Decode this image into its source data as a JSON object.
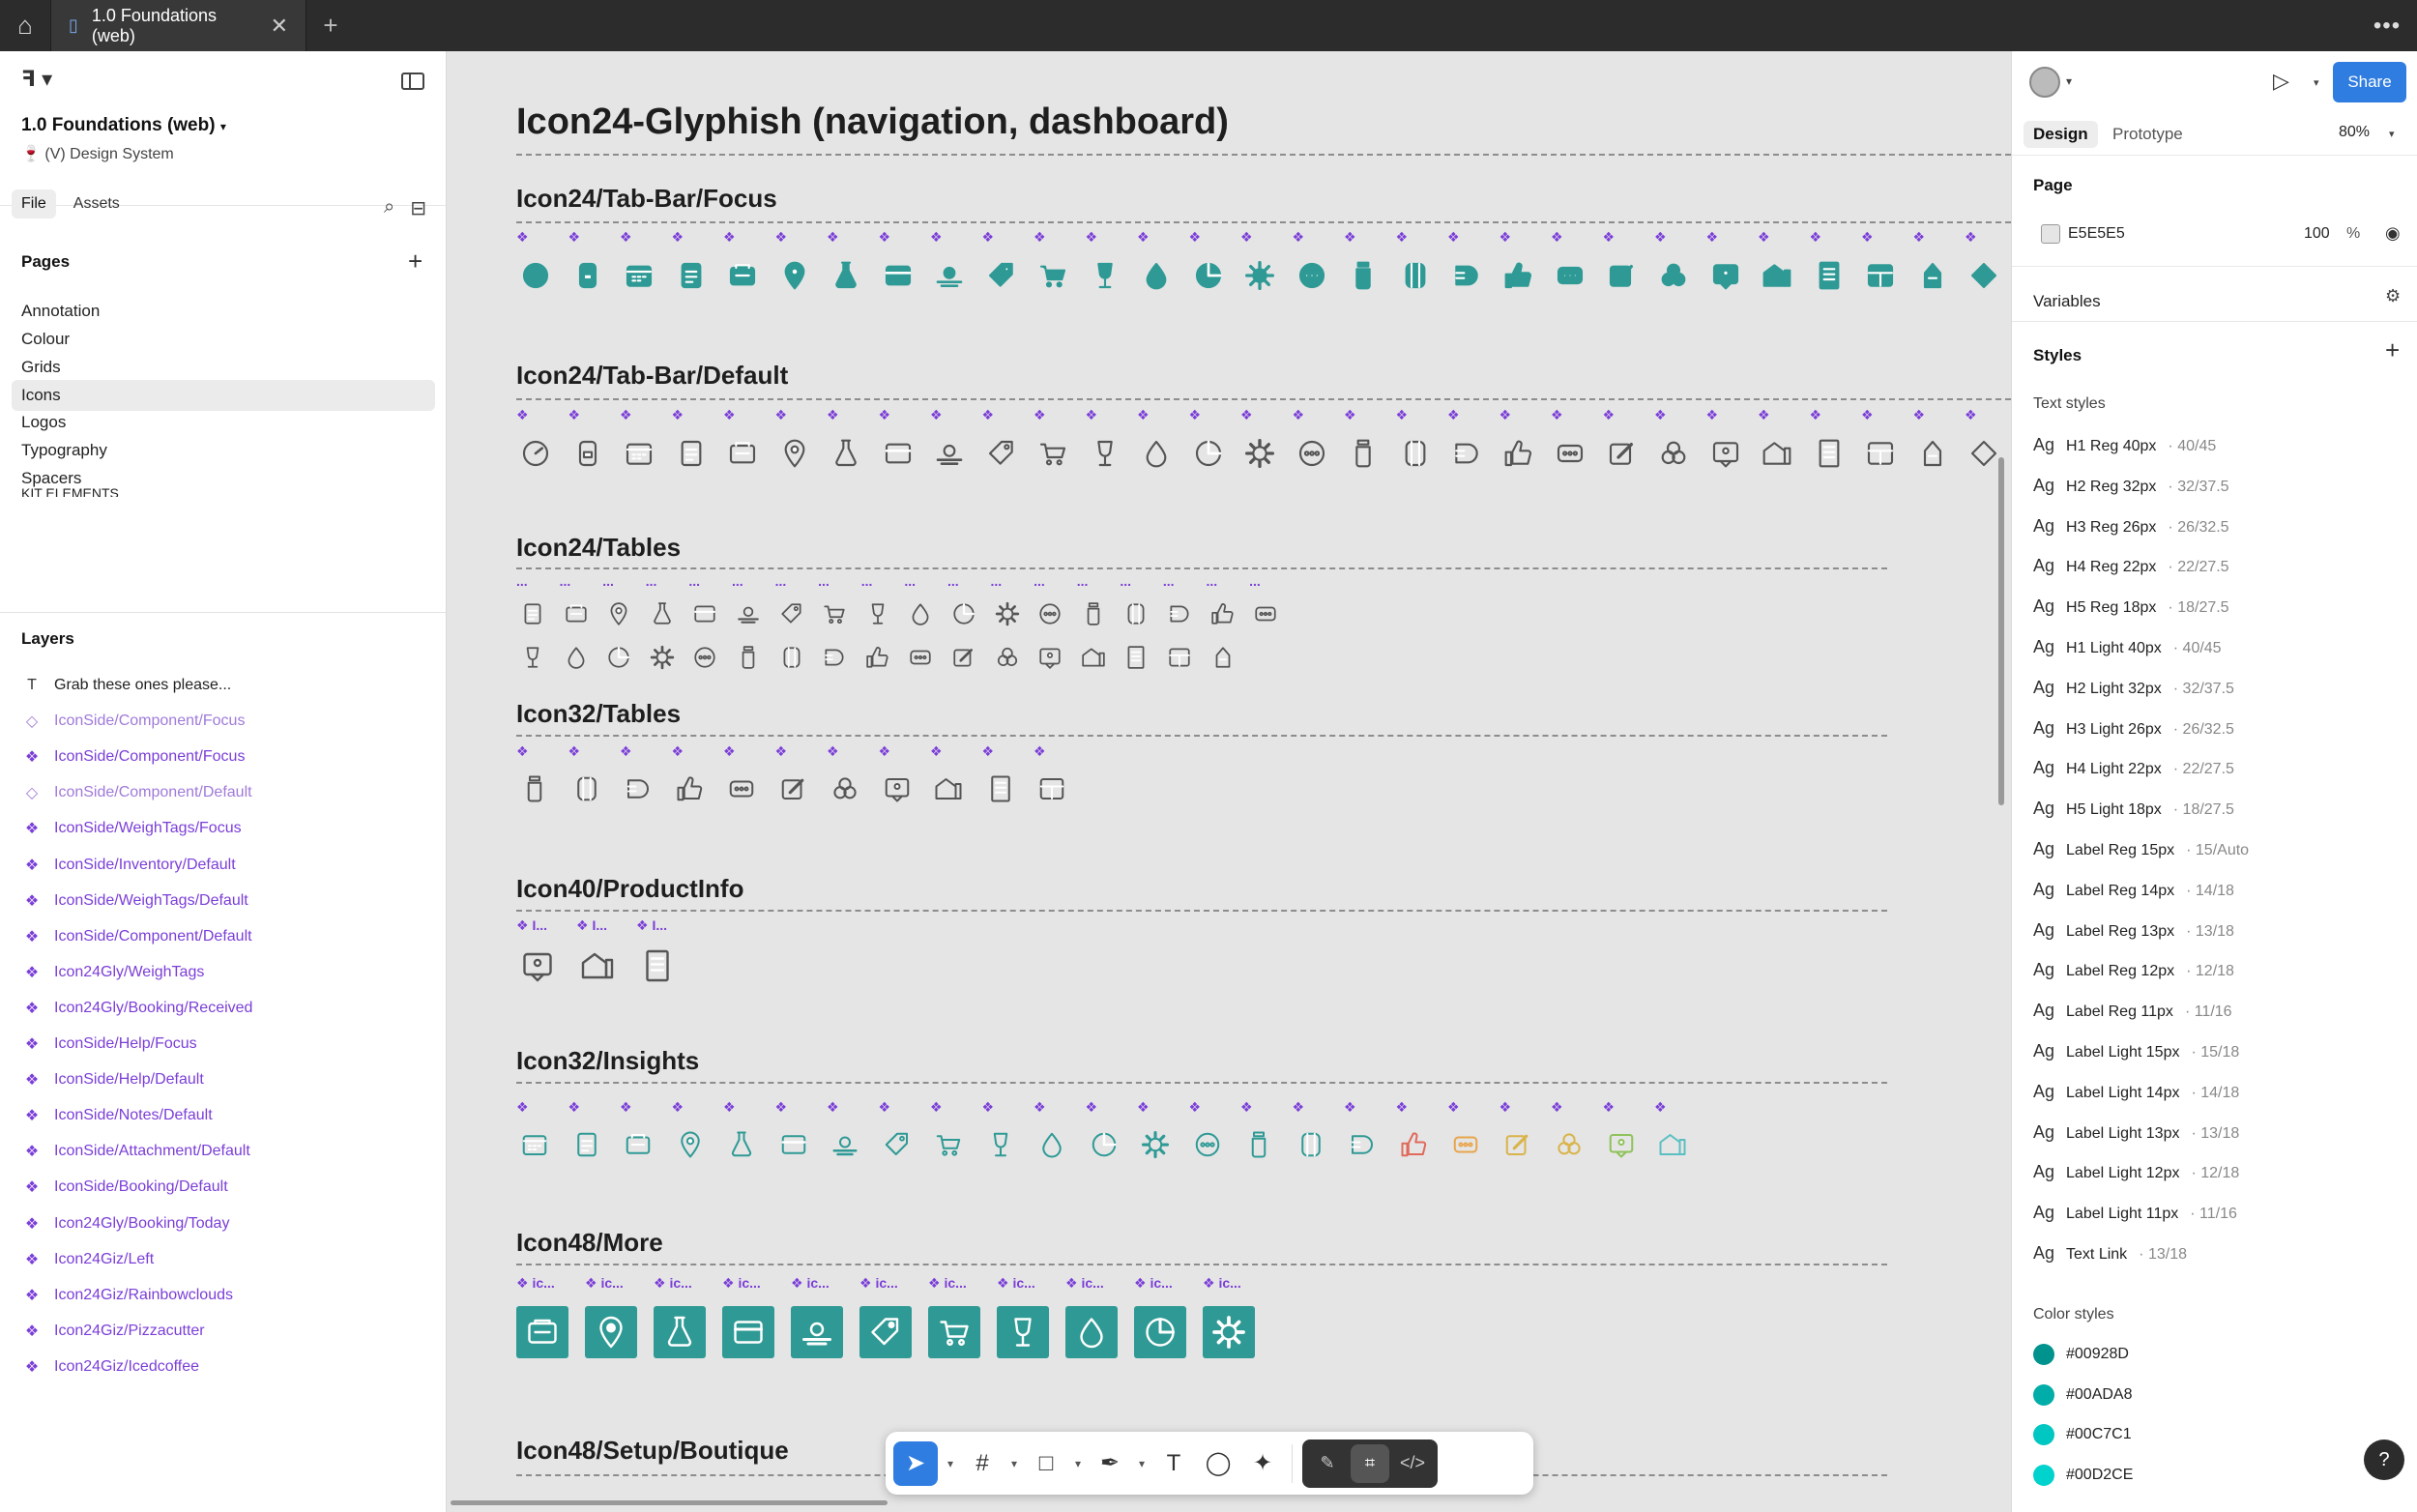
{
  "topbar": {
    "tab_label": "1.0 Foundations (web)"
  },
  "left": {
    "file_title": "1.0 Foundations (web)",
    "file_subtitle": "🍷 (V) Design System",
    "tab_file": "File",
    "tab_assets": "Assets",
    "pages_header": "Pages",
    "pages": [
      "Annotation",
      "Colour",
      "Grids",
      "Icons",
      "Logos",
      "Typography",
      "Spacers",
      "KIT ELEMENTS"
    ],
    "active_page": "Icons",
    "layers_header": "Layers",
    "layers": [
      {
        "label": "Grab these ones please...",
        "kind": "text"
      },
      {
        "label": "IconSide/Component/Focus",
        "kind": "dim"
      },
      {
        "label": "IconSide/Component/Focus",
        "kind": "purple"
      },
      {
        "label": "IconSide/Component/Default",
        "kind": "dim"
      },
      {
        "label": "IconSide/WeighTags/Focus",
        "kind": "purple"
      },
      {
        "label": "IconSide/Inventory/Default",
        "kind": "purple"
      },
      {
        "label": "IconSide/WeighTags/Default",
        "kind": "purple"
      },
      {
        "label": "IconSide/Component/Default",
        "kind": "purple"
      },
      {
        "label": "Icon24Gly/WeighTags",
        "kind": "purple"
      },
      {
        "label": "Icon24Gly/Booking/Received",
        "kind": "purple"
      },
      {
        "label": "IconSide/Help/Focus",
        "kind": "purple"
      },
      {
        "label": "IconSide/Help/Default",
        "kind": "purple"
      },
      {
        "label": "IconSide/Notes/Default",
        "kind": "purple"
      },
      {
        "label": "IconSide/Attachment/Default",
        "kind": "purple"
      },
      {
        "label": "IconSide/Booking/Default",
        "kind": "purple"
      },
      {
        "label": "Icon24Gly/Booking/Today",
        "kind": "purple"
      },
      {
        "label": "Icon24Giz/Left",
        "kind": "purple"
      },
      {
        "label": "Icon24Giz/Rainbowclouds",
        "kind": "purple"
      },
      {
        "label": "Icon24Giz/Pizzacutter",
        "kind": "purple"
      },
      {
        "label": "Icon24Giz/Icedcoffee",
        "kind": "purple"
      }
    ]
  },
  "canvas": {
    "page_title": "Icon24-Glyphish (navigation, dashboard)",
    "sections": {
      "tabbar_focus": "Icon24/Tab-Bar/Focus",
      "tabbar_default": "Icon24/Tab-Bar/Default",
      "tables24": "Icon24/Tables",
      "tables32": "Icon32/Tables",
      "productinfo40": "Icon40/ProductInfo",
      "insights32": "Icon32/Insights",
      "more48": "Icon48/More",
      "setup48": "Icon48/Setup/Boutique"
    },
    "label_icon": "❖",
    "label_dots": "...",
    "label_i": "❖ I...",
    "label_ic": "❖ ic...",
    "counts": {
      "tabbar": 29,
      "tables24_row1": 18,
      "tables24_row2": 17,
      "tables32": 11,
      "productinfo": 3,
      "insights": 23,
      "more": 11
    },
    "colors": {
      "teal": "#2f9a95",
      "gray_icon": "#555555",
      "label_purple": "#7b3ed8",
      "insight_red": "#e06a5a",
      "insight_orange": "#e8a54c",
      "insight_yellow": "#d9b44a",
      "insight_green": "#8ec25a",
      "insight_cyan": "#5bbfc2"
    }
  },
  "toolbar": {
    "tools": [
      "move-tool",
      "frame-tool",
      "shape-tool",
      "pen-tool",
      "text-tool",
      "comment-tool",
      "actions-tool"
    ],
    "dev_tools": [
      "draw-mode",
      "design-mode",
      "dev-mode"
    ]
  },
  "right": {
    "tab_design": "Design",
    "tab_prototype": "Prototype",
    "zoom": "80%",
    "share": "Share",
    "page_header": "Page",
    "page_color": "E5E5E5",
    "page_opacity": "100",
    "page_opacity_unit": "%",
    "variables_header": "Variables",
    "styles_header": "Styles",
    "text_styles_header": "Text styles",
    "ag": "Ag",
    "text_styles": [
      {
        "name": "H1 Reg 40px",
        "meta": "· 40/45"
      },
      {
        "name": "H2 Reg 32px",
        "meta": "· 32/37.5"
      },
      {
        "name": "H3 Reg 26px",
        "meta": "· 26/32.5"
      },
      {
        "name": "H4 Reg 22px",
        "meta": "· 22/27.5"
      },
      {
        "name": "H5 Reg 18px",
        "meta": "· 18/27.5"
      },
      {
        "name": "H1 Light 40px",
        "meta": "· 40/45"
      },
      {
        "name": "H2 Light 32px",
        "meta": "· 32/37.5"
      },
      {
        "name": "H3 Light 26px",
        "meta": "· 26/32.5"
      },
      {
        "name": "H4 Light 22px",
        "meta": "· 22/27.5"
      },
      {
        "name": "H5 Light 18px",
        "meta": "· 18/27.5"
      },
      {
        "name": "Label Reg 15px",
        "meta": "· 15/Auto"
      },
      {
        "name": "Label Reg 14px",
        "meta": "· 14/18"
      },
      {
        "name": "Label Reg 13px",
        "meta": "· 13/18"
      },
      {
        "name": "Label Reg 12px",
        "meta": "· 12/18"
      },
      {
        "name": "Label Reg 11px",
        "meta": "· 11/16"
      },
      {
        "name": "Label Light 15px",
        "meta": "· 15/18"
      },
      {
        "name": "Label Light 14px",
        "meta": "· 14/18"
      },
      {
        "name": "Label Light 13px",
        "meta": "· 13/18"
      },
      {
        "name": "Label Light 12px",
        "meta": "· 12/18"
      },
      {
        "name": "Label Light 11px",
        "meta": "· 11/16"
      },
      {
        "name": "Text Link",
        "meta": "· 13/18"
      }
    ],
    "color_styles_header": "Color styles",
    "color_styles": [
      {
        "name": "#00928D",
        "hex": "#00928D"
      },
      {
        "name": "#00ADA8",
        "hex": "#00ADA8"
      },
      {
        "name": "#00C7C1",
        "hex": "#00C7C1"
      },
      {
        "name": "#00D2CE",
        "hex": "#00D2CE"
      }
    ],
    "help": "?"
  }
}
